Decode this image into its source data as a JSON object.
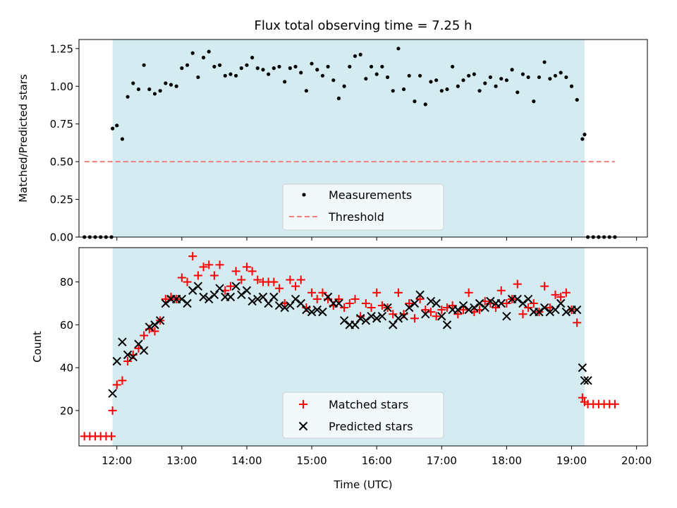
{
  "chart_data": [
    {
      "type": "scatter",
      "title": "Flux total observing time = 7.25 h",
      "ylabel": "Matched/Predicted stars",
      "xlabel": "",
      "xlim": [
        "11:25",
        "20:10"
      ],
      "ylim": [
        0,
        1.31
      ],
      "yticks": [
        "0.00",
        "0.25",
        "0.50",
        "0.75",
        "1.00",
        "1.25"
      ],
      "ytick_values": [
        0,
        0.25,
        0.5,
        0.75,
        1.0,
        1.25
      ],
      "xtick_labels_visible": false,
      "shaded_interval": {
        "start": "11:56",
        "end": "19:12",
        "color": "#d4ebf2"
      },
      "legend": {
        "placement": "lower center",
        "entries": [
          "Measurements",
          "Threshold"
        ]
      },
      "threshold": {
        "name": "Threshold",
        "value": 0.5,
        "x_start": "11:30",
        "x_end": "19:40",
        "color": "#f08080"
      },
      "series": [
        {
          "name": "Measurements",
          "color": "#000000",
          "x": [
            "11:30",
            "11:35",
            "11:40",
            "11:45",
            "11:50",
            "11:55",
            "11:56",
            "12:00",
            "12:05",
            "12:10",
            "12:15",
            "12:20",
            "12:25",
            "12:30",
            "12:35",
            "12:40",
            "12:45",
            "12:50",
            "12:55",
            "13:00",
            "13:05",
            "13:10",
            "13:15",
            "13:20",
            "13:25",
            "13:30",
            "13:35",
            "13:40",
            "13:45",
            "13:50",
            "13:55",
            "14:00",
            "14:05",
            "14:10",
            "14:15",
            "14:20",
            "14:25",
            "14:30",
            "14:35",
            "14:40",
            "14:45",
            "14:50",
            "14:55",
            "15:00",
            "15:05",
            "15:10",
            "15:15",
            "15:20",
            "15:25",
            "15:30",
            "15:35",
            "15:40",
            "15:45",
            "15:50",
            "15:55",
            "16:00",
            "16:05",
            "16:10",
            "16:15",
            "16:20",
            "16:25",
            "16:30",
            "16:35",
            "16:40",
            "16:45",
            "16:50",
            "16:55",
            "17:00",
            "17:05",
            "17:10",
            "17:15",
            "17:20",
            "17:25",
            "17:30",
            "17:35",
            "17:40",
            "17:45",
            "17:50",
            "17:55",
            "18:00",
            "18:05",
            "18:10",
            "18:15",
            "18:20",
            "18:25",
            "18:30",
            "18:35",
            "18:40",
            "18:45",
            "18:50",
            "18:55",
            "19:00",
            "19:05",
            "19:10",
            "19:12",
            "19:15",
            "19:20",
            "19:25",
            "19:30",
            "19:35",
            "19:40"
          ],
          "y": [
            0,
            0,
            0,
            0,
            0,
            0,
            0.72,
            0.74,
            0.65,
            0.93,
            1.02,
            0.98,
            1.14,
            0.98,
            0.95,
            0.97,
            1.02,
            1.01,
            1.0,
            1.12,
            1.14,
            1.22,
            1.06,
            1.19,
            1.23,
            1.13,
            1.14,
            1.07,
            1.08,
            1.07,
            1.12,
            1.14,
            1.19,
            1.12,
            1.11,
            1.08,
            1.12,
            1.13,
            1.03,
            1.12,
            1.13,
            1.09,
            0.97,
            1.15,
            1.11,
            1.07,
            1.13,
            1.04,
            0.92,
            1.0,
            1.13,
            1.2,
            1.21,
            1.05,
            1.13,
            1.08,
            1.13,
            1.06,
            0.97,
            1.25,
            0.98,
            1.07,
            0.9,
            1.07,
            0.88,
            1.03,
            1.04,
            0.97,
            0.98,
            1.13,
            1.0,
            1.04,
            1.07,
            1.08,
            0.97,
            1.02,
            1.06,
            1.0,
            1.05,
            1.04,
            1.11,
            0.96,
            1.08,
            1.06,
            0.9,
            1.06,
            1.16,
            1.05,
            1.07,
            1.09,
            1.06,
            1.0,
            0.91,
            0.65,
            0.68,
            0,
            0,
            0,
            0,
            0,
            0
          ]
        }
      ]
    },
    {
      "type": "scatter",
      "title": "",
      "ylabel": "Count",
      "xlabel": "Time (UTC)",
      "xlim": [
        "11:25",
        "20:10"
      ],
      "ylim": [
        3.5,
        96
      ],
      "yticks": [
        "20",
        "40",
        "60",
        "80"
      ],
      "ytick_values": [
        20,
        40,
        60,
        80
      ],
      "xticks": [
        "12:00",
        "13:00",
        "14:00",
        "15:00",
        "16:00",
        "17:00",
        "18:00",
        "19:00",
        "20:00"
      ],
      "shaded_interval": {
        "start": "11:56",
        "end": "19:12",
        "color": "#d4ebf2"
      },
      "legend": {
        "placement": "lower center",
        "entries": [
          "Matched stars",
          "Predicted stars"
        ]
      },
      "series": [
        {
          "name": "Matched stars",
          "marker": "plus",
          "color": "#ff0000",
          "x": [
            "11:30",
            "11:35",
            "11:40",
            "11:45",
            "11:50",
            "11:55",
            "11:56",
            "12:00",
            "12:05",
            "12:10",
            "12:15",
            "12:20",
            "12:25",
            "12:30",
            "12:35",
            "12:40",
            "12:45",
            "12:50",
            "12:55",
            "13:00",
            "13:05",
            "13:10",
            "13:15",
            "13:20",
            "13:25",
            "13:30",
            "13:35",
            "13:40",
            "13:45",
            "13:50",
            "13:55",
            "14:00",
            "14:05",
            "14:10",
            "14:15",
            "14:20",
            "14:25",
            "14:30",
            "14:35",
            "14:40",
            "14:45",
            "14:50",
            "14:55",
            "15:00",
            "15:05",
            "15:10",
            "15:15",
            "15:20",
            "15:25",
            "15:30",
            "15:35",
            "15:40",
            "15:45",
            "15:50",
            "15:55",
            "16:00",
            "16:05",
            "16:10",
            "16:15",
            "16:20",
            "16:25",
            "16:30",
            "16:35",
            "16:40",
            "16:45",
            "16:50",
            "16:55",
            "17:00",
            "17:05",
            "17:10",
            "17:15",
            "17:20",
            "17:25",
            "17:30",
            "17:35",
            "17:40",
            "17:45",
            "17:50",
            "17:55",
            "18:00",
            "18:05",
            "18:10",
            "18:15",
            "18:20",
            "18:25",
            "18:30",
            "18:35",
            "18:40",
            "18:45",
            "18:50",
            "18:55",
            "19:00",
            "19:05",
            "19:10",
            "19:12",
            "19:15",
            "19:20",
            "19:25",
            "19:30",
            "19:35",
            "19:40"
          ],
          "y": [
            8,
            8,
            8,
            8,
            8,
            8,
            20,
            32,
            34,
            43,
            46,
            49,
            55,
            58,
            57,
            62,
            72,
            73,
            72,
            82,
            80,
            92,
            83,
            87,
            88,
            83,
            88,
            76,
            78,
            85,
            81,
            87,
            85,
            81,
            80,
            80,
            80,
            77,
            70,
            81,
            78,
            81,
            68,
            75,
            72,
            75,
            72,
            69,
            72,
            68,
            70,
            72,
            64,
            70,
            68,
            75,
            69,
            68,
            65,
            75,
            65,
            70,
            63,
            72,
            67,
            66,
            64,
            67,
            68,
            69,
            65,
            67,
            75,
            66,
            67,
            71,
            70,
            68,
            76,
            70,
            72,
            79,
            65,
            68,
            70,
            66,
            78,
            68,
            74,
            73,
            75,
            67,
            61,
            26,
            24,
            23,
            23,
            23,
            23,
            23,
            23
          ]
        },
        {
          "name": "Predicted stars",
          "marker": "x",
          "color": "#000000",
          "x": [
            "11:56",
            "12:00",
            "12:05",
            "12:10",
            "12:15",
            "12:20",
            "12:25",
            "12:30",
            "12:35",
            "12:40",
            "12:45",
            "12:50",
            "12:55",
            "13:00",
            "13:05",
            "13:10",
            "13:15",
            "13:20",
            "13:25",
            "13:30",
            "13:35",
            "13:40",
            "13:45",
            "13:50",
            "13:55",
            "14:00",
            "14:05",
            "14:10",
            "14:15",
            "14:20",
            "14:25",
            "14:30",
            "14:35",
            "14:40",
            "14:45",
            "14:50",
            "14:55",
            "15:00",
            "15:05",
            "15:10",
            "15:15",
            "15:20",
            "15:25",
            "15:30",
            "15:35",
            "15:40",
            "15:45",
            "15:50",
            "15:55",
            "16:00",
            "16:05",
            "16:10",
            "16:15",
            "16:20",
            "16:25",
            "16:30",
            "16:35",
            "16:40",
            "16:45",
            "16:50",
            "16:55",
            "17:00",
            "17:05",
            "17:10",
            "17:15",
            "17:20",
            "17:25",
            "17:30",
            "17:35",
            "17:40",
            "17:45",
            "17:50",
            "17:55",
            "18:00",
            "18:05",
            "18:10",
            "18:15",
            "18:20",
            "18:25",
            "18:30",
            "18:35",
            "18:40",
            "18:45",
            "18:50",
            "18:55",
            "19:00",
            "19:05",
            "19:10",
            "19:12",
            "19:15"
          ],
          "y": [
            28,
            43,
            52,
            46,
            45,
            51,
            48,
            59,
            60,
            62,
            70,
            72,
            72,
            72,
            70,
            76,
            78,
            73,
            72,
            74,
            77,
            73,
            73,
            78,
            74,
            76,
            71,
            72,
            73,
            70,
            73,
            69,
            68,
            69,
            72,
            70,
            67,
            66,
            67,
            66,
            73,
            70,
            70,
            62,
            60,
            60,
            63,
            62,
            64,
            63,
            64,
            68,
            60,
            63,
            64,
            68,
            70,
            74,
            65,
            71,
            70,
            64,
            60,
            67,
            67,
            69,
            67,
            68,
            70,
            68,
            71,
            70,
            70,
            64,
            72,
            72,
            70,
            72,
            66,
            66,
            68,
            66,
            67,
            70,
            66,
            67,
            67,
            40,
            34,
            34
          ]
        }
      ]
    }
  ]
}
